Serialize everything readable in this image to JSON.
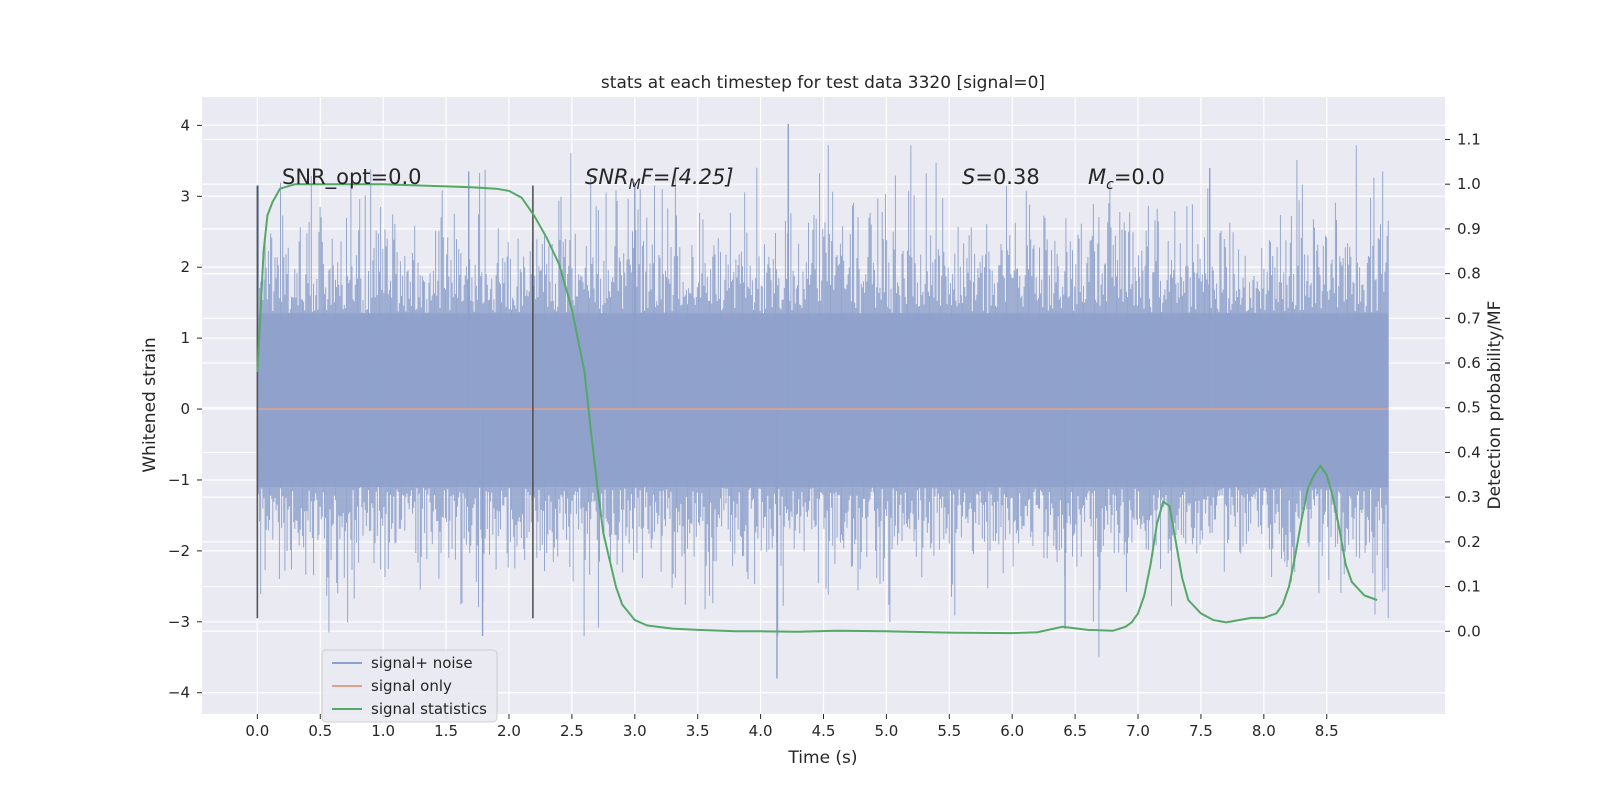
{
  "chart_data": {
    "type": "line",
    "title": "stats at each timestep for test data 3320 [signal=0]",
    "xlabel": "Time (s)",
    "ylabel": "Whitened strain",
    "y2label": "Detection probability/MF",
    "xlim": [
      -0.44,
      9.44
    ],
    "ylim": [
      -4.3,
      4.4
    ],
    "y2lim": [
      -0.185,
      1.195
    ],
    "xticks": [
      "0.0",
      "0.5",
      "1.0",
      "1.5",
      "2.0",
      "2.5",
      "3.0",
      "3.5",
      "4.0",
      "4.5",
      "5.0",
      "5.5",
      "6.0",
      "6.5",
      "7.0",
      "7.5",
      "8.0",
      "8.5"
    ],
    "yticks": [
      "4",
      "3",
      "2",
      "1",
      "0",
      "−1",
      "−2",
      "−3",
      "−4"
    ],
    "y2ticks": [
      "1.1",
      "1.0",
      "0.9",
      "0.8",
      "0.7",
      "0.6",
      "0.5",
      "0.4",
      "0.3",
      "0.2",
      "0.1",
      "0.0"
    ],
    "grid": true,
    "legend_position": "lower-left",
    "annotations": {
      "snr_opt": "SNR_opt=0.0",
      "snr_mf_base": "SNR",
      "snr_mf_sub": "M",
      "snr_mf_rest": "F=[4.25]",
      "s_symbol": "S",
      "s_value": "=0.38",
      "mc_base": "M",
      "mc_sub": "c",
      "mc_value": "=0.0"
    },
    "vlines": [
      0.0,
      2.19
    ],
    "colors": {
      "noise": "#8da0cb",
      "signal": "#e1a08a",
      "stats": "#55a868",
      "vline": "#555555",
      "background": "#eaeaf2",
      "grid": "#ffffff"
    },
    "series": [
      {
        "name": "signal+ noise",
        "type": "noise_band",
        "x_start": 0.0,
        "x_end": 8.99,
        "core": [
          -1.1,
          1.35
        ],
        "typical": [
          -2.0,
          2.4
        ],
        "max": 4.02,
        "min": -3.8
      },
      {
        "name": "signal only",
        "x": [
          0.0,
          8.99
        ],
        "y": [
          0.0,
          0.0
        ]
      },
      {
        "name": "signal statistics",
        "axis": "right",
        "x": [
          0.0,
          0.05,
          0.08,
          0.12,
          0.18,
          0.3,
          0.5,
          1.0,
          1.5,
          1.7,
          1.9,
          2.0,
          2.1,
          2.2,
          2.3,
          2.4,
          2.5,
          2.6,
          2.65,
          2.7,
          2.75,
          2.8,
          2.85,
          2.9,
          3.0,
          3.1,
          3.3,
          3.5,
          3.8,
          4.0,
          4.3,
          4.6,
          5.0,
          5.5,
          6.0,
          6.2,
          6.4,
          6.6,
          6.8,
          6.9,
          6.95,
          7.0,
          7.05,
          7.1,
          7.15,
          7.2,
          7.25,
          7.3,
          7.35,
          7.4,
          7.5,
          7.6,
          7.7,
          7.8,
          7.9,
          8.0,
          8.05,
          8.1,
          8.15,
          8.2,
          8.25,
          8.3,
          8.35,
          8.4,
          8.45,
          8.5,
          8.55,
          8.6,
          8.65,
          8.7,
          8.8,
          8.9
        ],
        "y": [
          0.58,
          0.85,
          0.93,
          0.96,
          0.99,
          1.0,
          1.0,
          1.0,
          0.995,
          0.993,
          0.99,
          0.985,
          0.97,
          0.93,
          0.88,
          0.82,
          0.72,
          0.58,
          0.45,
          0.33,
          0.22,
          0.16,
          0.1,
          0.06,
          0.025,
          0.013,
          0.006,
          0.003,
          0.0,
          0.0,
          -0.001,
          0.001,
          0.0,
          -0.003,
          -0.004,
          -0.002,
          0.01,
          0.003,
          0.001,
          0.01,
          0.02,
          0.04,
          0.08,
          0.15,
          0.24,
          0.29,
          0.28,
          0.2,
          0.12,
          0.07,
          0.04,
          0.025,
          0.02,
          0.025,
          0.03,
          0.03,
          0.035,
          0.04,
          0.06,
          0.1,
          0.17,
          0.25,
          0.32,
          0.35,
          0.37,
          0.35,
          0.3,
          0.23,
          0.15,
          0.11,
          0.08,
          0.07
        ]
      }
    ]
  }
}
